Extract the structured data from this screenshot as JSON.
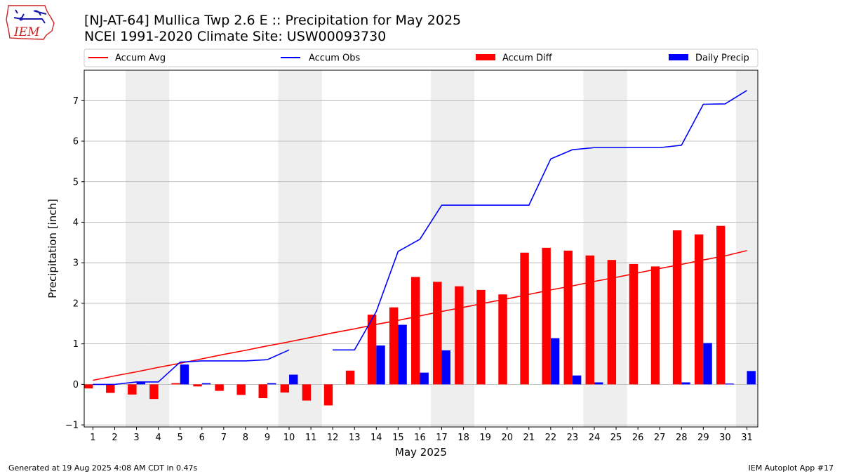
{
  "header": {
    "logo_text": "IEM",
    "title": "[NJ-AT-64] Mullica Twp 2.6 E :: Precipitation for May 2025",
    "subtitle": "NCEI 1991-2020 Climate Site: USW00093730"
  },
  "footer": {
    "left": "Generated at 19 Aug 2025 4:08 AM CDT in 0.47s",
    "right": "IEM Autoplot App #17"
  },
  "colors": {
    "accum_avg": "#ff0000",
    "accum_obs": "#0000ff",
    "accum_diff": "#ff0000",
    "daily_precip": "#0000ff",
    "weekend_shade": "#eeeeee",
    "grid": "#b0b0b0"
  },
  "chart_data": {
    "type": "bar",
    "xlabel": "May 2025",
    "ylabel": "Precipitation [inch]",
    "xlim": [
      0.6,
      31.5
    ],
    "ylim": [
      -1.05,
      7.75
    ],
    "yticks": [
      -1,
      0,
      1,
      2,
      3,
      4,
      5,
      6,
      7
    ],
    "grid": "horizontal",
    "legend_placement": "top",
    "x": [
      1,
      2,
      3,
      4,
      5,
      6,
      7,
      8,
      9,
      10,
      11,
      12,
      13,
      14,
      15,
      16,
      17,
      18,
      19,
      20,
      21,
      22,
      23,
      24,
      25,
      26,
      27,
      28,
      29,
      30,
      31
    ],
    "weekend_days": [
      3,
      4,
      10,
      11,
      17,
      18,
      24,
      25,
      31
    ],
    "series": [
      {
        "name": "Accum Avg",
        "kind": "line",
        "values": [
          0.1,
          0.21,
          0.31,
          0.42,
          0.52,
          0.63,
          0.74,
          0.84,
          0.95,
          1.05,
          1.16,
          1.27,
          1.37,
          1.48,
          1.58,
          1.69,
          1.8,
          1.9,
          2.01,
          2.11,
          2.22,
          2.33,
          2.43,
          2.54,
          2.64,
          2.75,
          2.86,
          2.96,
          3.07,
          3.17,
          3.3
        ]
      },
      {
        "name": "Accum Obs",
        "kind": "line",
        "values": [
          0.0,
          0.0,
          0.06,
          0.06,
          0.55,
          0.58,
          0.58,
          0.58,
          0.61,
          0.85,
          null,
          0.85,
          0.85,
          1.8,
          3.28,
          3.58,
          4.42,
          4.42,
          4.42,
          4.42,
          4.42,
          5.56,
          5.79,
          5.84,
          5.84,
          5.84,
          5.84,
          5.9,
          6.91,
          6.92,
          7.25
        ]
      },
      {
        "name": "Accum Diff",
        "kind": "bar",
        "values": [
          -0.1,
          -0.21,
          -0.25,
          -0.36,
          0.03,
          -0.05,
          -0.16,
          -0.26,
          -0.34,
          -0.2,
          -0.4,
          -0.52,
          0.34,
          1.72,
          1.9,
          2.65,
          2.53,
          2.42,
          2.33,
          2.22,
          3.25,
          3.37,
          3.3,
          3.18,
          3.07,
          2.97,
          2.91,
          3.8,
          3.7,
          3.91,
          null
        ]
      },
      {
        "name": "Daily Precip",
        "kind": "bar",
        "values": [
          0.0,
          0.0,
          0.06,
          0.0,
          0.49,
          0.03,
          0.0,
          0.0,
          0.03,
          0.24,
          0.0,
          0.0,
          0.0,
          0.96,
          1.47,
          0.29,
          0.84,
          0.0,
          0.0,
          0.0,
          0.0,
          1.14,
          0.22,
          0.05,
          0.0,
          0.0,
          0.0,
          0.05,
          1.02,
          0.02,
          0.33
        ]
      }
    ]
  }
}
